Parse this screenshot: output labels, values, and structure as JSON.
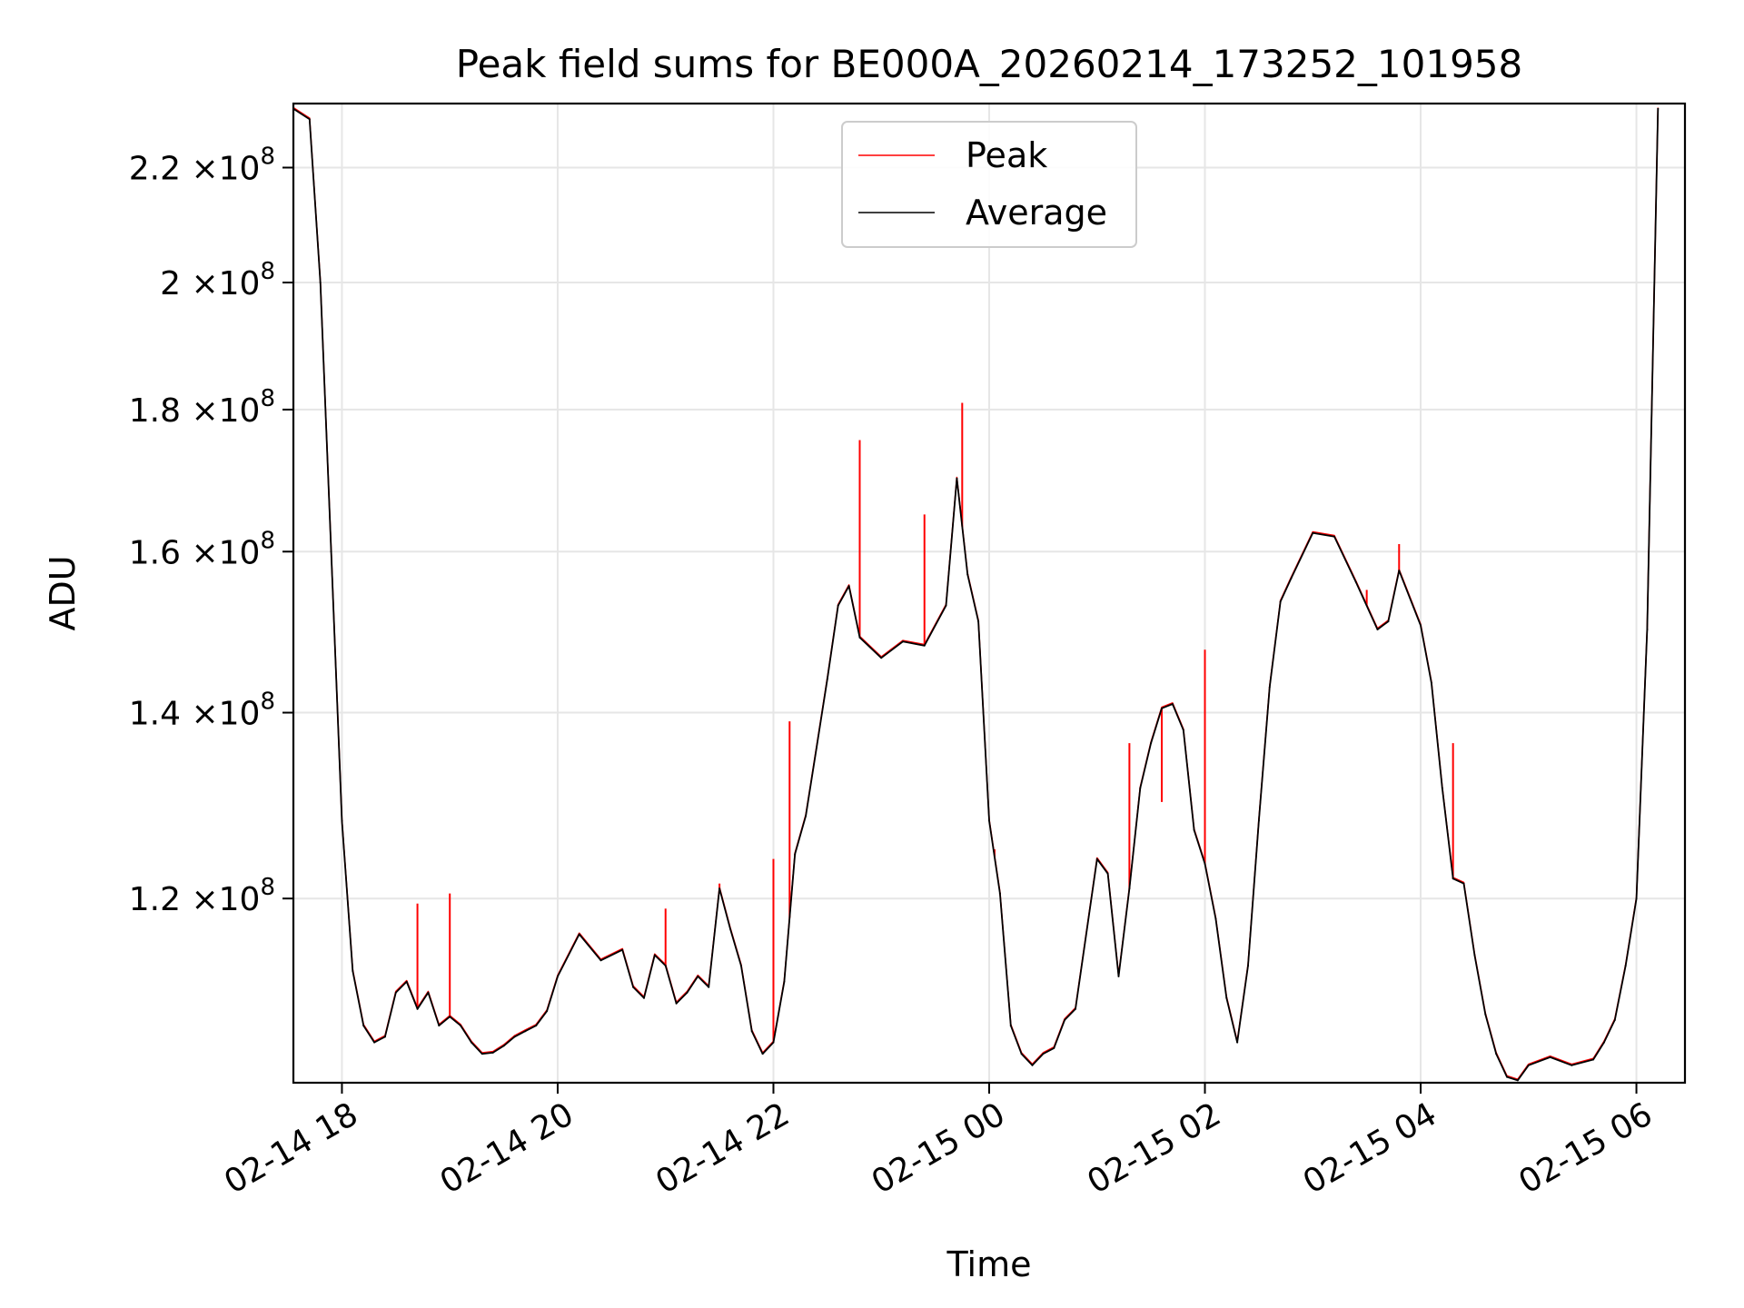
{
  "chart_data": {
    "type": "line",
    "title": "Peak field sums for BE000A_20260214_173252_101958",
    "xlabel": "Time",
    "ylabel": "ADU",
    "yscale": "log",
    "ylim": [
      103000000,
      232000000
    ],
    "xlim_hours": [
      17.55,
      6.45
    ],
    "x_ticks": [
      {
        "hour": 18,
        "label": "02-14 18"
      },
      {
        "hour": 20,
        "label": "02-14 20"
      },
      {
        "hour": 22,
        "label": "02-14 22"
      },
      {
        "hour": 24,
        "label": "02-15 00"
      },
      {
        "hour": 26,
        "label": "02-15 02"
      },
      {
        "hour": 28,
        "label": "02-15 04"
      },
      {
        "hour": 30,
        "label": "02-15 06"
      }
    ],
    "y_ticks": [
      {
        "value": 120000000,
        "mant": "1.2",
        "exp": "8"
      },
      {
        "value": 140000000,
        "mant": "1.4",
        "exp": "8"
      },
      {
        "value": 160000000,
        "mant": "1.6",
        "exp": "8"
      },
      {
        "value": 180000000,
        "mant": "1.8",
        "exp": "8"
      },
      {
        "value": 200000000,
        "mant": "2",
        "exp": "8"
      },
      {
        "value": 220000000,
        "mant": "2.2",
        "exp": "8"
      }
    ],
    "tick_multiplier": "×10",
    "legend": {
      "placement": "upper-center",
      "entries": [
        "Peak",
        "Average"
      ]
    },
    "colors": {
      "Peak": "#ff0000",
      "Average": "#000000"
    },
    "series": [
      {
        "name": "Average",
        "x_hours": [
          17.55,
          17.7,
          17.8,
          17.9,
          18.0,
          18.1,
          18.2,
          18.3,
          18.4,
          18.5,
          18.6,
          18.7,
          18.8,
          18.9,
          19.0,
          19.1,
          19.2,
          19.3,
          19.4,
          19.5,
          19.6,
          19.7,
          19.8,
          19.9,
          20.0,
          20.2,
          20.4,
          20.6,
          20.7,
          20.8,
          20.9,
          21.0,
          21.1,
          21.2,
          21.3,
          21.4,
          21.5,
          21.6,
          21.7,
          21.8,
          21.9,
          22.0,
          22.1,
          22.2,
          22.3,
          22.4,
          22.5,
          22.6,
          22.7,
          22.8,
          23.0,
          23.2,
          23.4,
          23.6,
          23.7,
          23.8,
          23.9,
          24.0,
          24.1,
          24.2,
          24.3,
          24.4,
          24.5,
          24.6,
          24.7,
          24.8,
          25.0,
          25.1,
          25.2,
          25.3,
          25.4,
          25.5,
          25.6,
          25.7,
          25.8,
          25.9,
          26.0,
          26.1,
          26.2,
          26.3,
          26.4,
          26.5,
          26.6,
          26.7,
          26.8,
          27.0,
          27.2,
          27.4,
          27.6,
          27.7,
          27.8,
          28.0,
          28.1,
          28.2,
          28.3,
          28.4,
          28.5,
          28.6,
          28.7,
          28.8,
          28.9,
          29.0,
          29.2,
          29.4,
          29.6,
          29.7,
          29.8,
          29.9,
          30.0,
          30.1,
          30.2
        ],
        "values": [
          231000000,
          229000000,
          200000000,
          160000000,
          128000000,
          113000000,
          108000000,
          106500000,
          107000000,
          111000000,
          112000000,
          109500000,
          111000000,
          108000000,
          108800000,
          108000000,
          106500000,
          105500000,
          105600000,
          106200000,
          107000000,
          107500000,
          108000000,
          109300000,
          112500000,
          116500000,
          114000000,
          115000000,
          111500000,
          110500000,
          114500000,
          113500000,
          110000000,
          111000000,
          112500000,
          111500000,
          121000000,
          117000000,
          113500000,
          107500000,
          105500000,
          106500000,
          112000000,
          124500000,
          128500000,
          136000000,
          144000000,
          153000000,
          155500000,
          149000000,
          146500000,
          148500000,
          148000000,
          153000000,
          170000000,
          157000000,
          151000000,
          128000000,
          120500000,
          108000000,
          105500000,
          104500000,
          105500000,
          106000000,
          108500000,
          109500000,
          124000000,
          122500000,
          112500000,
          121000000,
          131500000,
          136500000,
          140500000,
          141000000,
          138000000,
          127000000,
          123500000,
          118000000,
          110500000,
          106500000,
          113500000,
          128000000,
          143000000,
          153500000,
          156500000,
          162500000,
          162000000,
          156000000,
          150000000,
          151000000,
          157500000,
          150500000,
          143500000,
          131500000,
          122000000,
          121500000,
          114500000,
          109000000,
          105500000,
          103500000,
          103200000,
          104500000,
          105200000,
          104500000,
          105000000,
          106500000,
          108500000,
          113500000,
          120000000,
          150000000,
          231000000
        ]
      },
      {
        "name": "Peak",
        "x_hours": [
          18.7,
          19.0,
          21.0,
          21.5,
          22.0,
          22.15,
          22.8,
          23.4,
          23.75,
          24.05,
          25.3,
          25.6,
          26.0,
          27.5,
          27.8,
          28.3
        ],
        "values": [
          119500000,
          120500000,
          119000000,
          121500000,
          124000000,
          139000000,
          175500000,
          165000000,
          181000000,
          125000000,
          136500000,
          130000000,
          147500000,
          155000000,
          161000000,
          136500000
        ]
      }
    ]
  }
}
